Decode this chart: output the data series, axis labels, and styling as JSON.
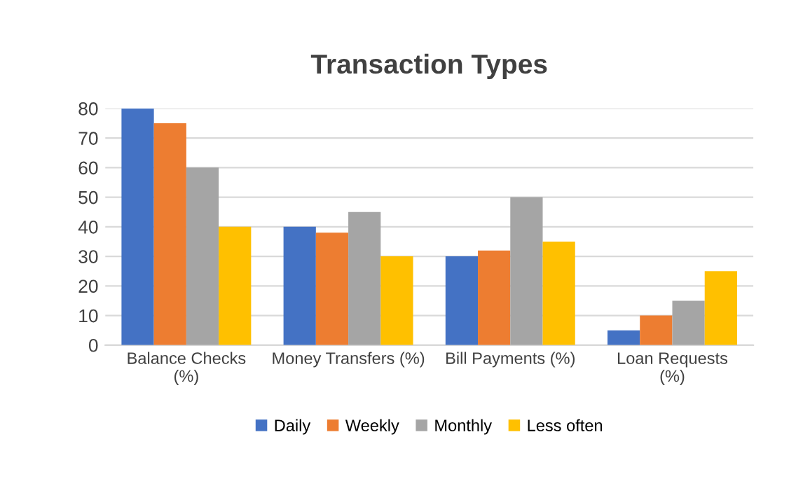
{
  "chart_data": {
    "type": "bar",
    "title": "Transaction Types",
    "categories": [
      "Balance Checks\n(%)",
      "Money Transfers (%)",
      "Bill Payments (%)",
      "Loan Requests\n(%)"
    ],
    "series": [
      {
        "name": "Daily",
        "color": "#4472c4",
        "values": [
          80,
          40,
          30,
          5
        ]
      },
      {
        "name": "Weekly",
        "color": "#ed7d31",
        "values": [
          75,
          38,
          32,
          10
        ]
      },
      {
        "name": "Monthly",
        "color": "#a5a5a5",
        "values": [
          60,
          45,
          50,
          15
        ]
      },
      {
        "name": "Less often",
        "color": "#ffc000",
        "values": [
          40,
          30,
          35,
          25
        ]
      }
    ],
    "ylim": [
      0,
      80
    ],
    "yticks": [
      0,
      10,
      20,
      30,
      40,
      50,
      60,
      70,
      80
    ],
    "grid": "y",
    "legend": "bottom"
  }
}
